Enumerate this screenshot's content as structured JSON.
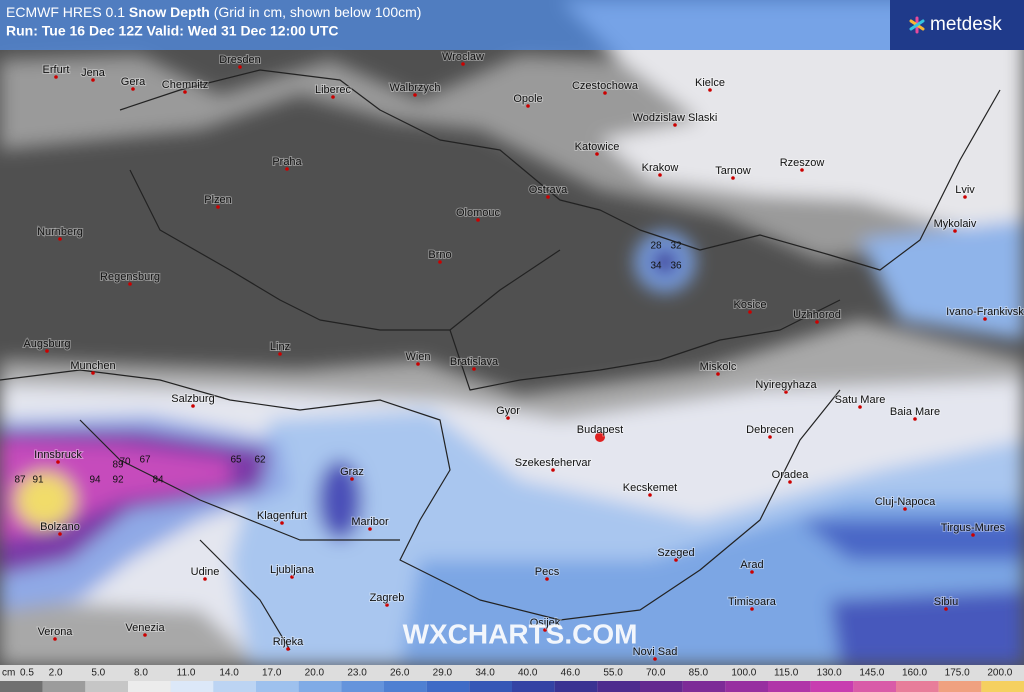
{
  "header": {
    "title_prefix": "ECMWF HRES 0.1",
    "title_bold": "Snow Depth",
    "title_suffix": "(Grid in cm, shown below 100cm)",
    "run": "Run: Tue 16 Dec 12Z Valid: Wed 31 Dec 12:00 UTC"
  },
  "logo": "metdesk",
  "watermark": "WXCHARTS.COM",
  "cities": [
    "Erfurt",
    "Jena",
    "Gera",
    "Chemnitz",
    "Dresden",
    "Liberec",
    "Walbrzych",
    "Wroclaw",
    "Opole",
    "Czestochowa",
    "Kielce",
    "Wodzislaw Slaski",
    "Katowice",
    "Krakow",
    "Tarnow",
    "Rzeszow",
    "Lviv",
    "Praha",
    "Plzen",
    "Ostrava",
    "Olomouc",
    "Mykolaiv",
    "Nurnberg",
    "Brno",
    "Regensburg",
    "Kosice",
    "Uzhhorod",
    "Ivano-Frankivsk",
    "Linz",
    "Augsburg",
    "Wien",
    "Bratislava",
    "Munchen",
    "Miskolc",
    "Nyiregyhaza",
    "Salzburg",
    "Satu Mare",
    "Baia Mare",
    "Gyor",
    "Budapest",
    "Innsbruck",
    "Debrecen",
    "Szekesfehervar",
    "Graz",
    "Kecskemet",
    "Oradea",
    "Cluj-Napoca",
    "Klagenfurt",
    "Maribor",
    "Bolzano",
    "Tirgus-Mures",
    "Szeged",
    "Udine",
    "Ljubljana",
    "Pecs",
    "Arad",
    "Zagreb",
    "Timisoara",
    "Sibiu",
    "Osijek",
    "Verona",
    "Venezia",
    "Rijeka",
    "Novi Sad"
  ],
  "grid_samples": [
    "28",
    "32",
    "34",
    "36",
    "87",
    "91",
    "94",
    "92",
    "84",
    "89",
    "67",
    "70",
    "65",
    "62"
  ],
  "colorbar": {
    "unit": "cm",
    "labels": [
      "0.5",
      "2.0",
      "5.0",
      "8.0",
      "11.0",
      "14.0",
      "17.0",
      "20.0",
      "23.0",
      "26.0",
      "29.0",
      "34.0",
      "40.0",
      "46.0",
      "55.0",
      "70.0",
      "85.0",
      "100.0",
      "115.0",
      "130.0",
      "145.0",
      "160.0",
      "175.0",
      "200.0"
    ],
    "colors": [
      "#707070",
      "#9c9c9c",
      "#c6c6c6",
      "#ececec",
      "#dce8f8",
      "#bcd4f3",
      "#9ec1ee",
      "#80abe6",
      "#6594dc",
      "#4f80d2",
      "#3f6bc6",
      "#3657b6",
      "#3443a4",
      "#3a3392",
      "#4d2c8e",
      "#64298f",
      "#7d2b97",
      "#972fa0",
      "#b035a8",
      "#c83db0",
      "#d95ba8",
      "#e87d9a",
      "#f0a180",
      "#f5d060"
    ]
  }
}
